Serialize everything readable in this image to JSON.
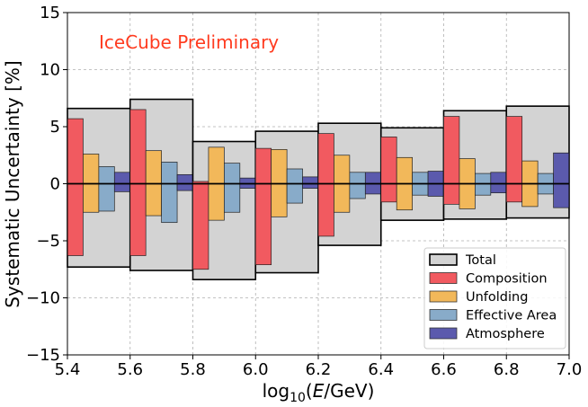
{
  "chart_data": {
    "type": "bar",
    "annotation": "IceCube Preliminary",
    "xlabel": {
      "prefix": "log",
      "sub": "10",
      "open": "(",
      "italic": "E",
      "rest": "/GeV)"
    },
    "ylabel": "Systematic Uncertainty [%]",
    "xlim": [
      5.4,
      7.0
    ],
    "ylim": [
      -15,
      15
    ],
    "x_ticks": [
      "5.4",
      "5.6",
      "5.8",
      "6.0",
      "6.2",
      "6.4",
      "6.6",
      "6.8",
      "7.0"
    ],
    "y_ticks": [
      "−15",
      "−10",
      "−5",
      "0",
      "5",
      "10",
      "15"
    ],
    "y_tick_values": [
      -15,
      -10,
      -5,
      0,
      5,
      10,
      15
    ],
    "x_tick_values": [
      5.4,
      5.6,
      5.8,
      6.0,
      6.2,
      6.4,
      6.6,
      6.8,
      7.0
    ],
    "grid": true,
    "legend_position": "lower-right",
    "bin_edges": [
      5.4,
      5.6,
      5.8,
      6.0,
      6.2,
      6.4,
      6.6,
      6.8,
      7.0
    ],
    "series": [
      {
        "name": "Total",
        "color": "#d3d3d3",
        "up": [
          6.6,
          7.4,
          3.7,
          4.6,
          5.3,
          4.9,
          6.4,
          6.8
        ],
        "down": [
          -7.3,
          -7.6,
          -8.4,
          -7.8,
          -5.4,
          -3.2,
          -3.1,
          -3.0
        ]
      },
      {
        "name": "Composition",
        "color": "#f15a60",
        "up": [
          5.7,
          6.5,
          0.2,
          3.1,
          4.4,
          4.1,
          5.9,
          5.9
        ],
        "down": [
          -6.3,
          -6.3,
          -7.5,
          -7.1,
          -4.6,
          -1.6,
          -1.8,
          -1.6
        ]
      },
      {
        "name": "Unfolding",
        "color": "#f2b85a",
        "up": [
          2.6,
          2.9,
          3.2,
          3.0,
          2.5,
          2.3,
          2.2,
          2.0
        ],
        "down": [
          -2.5,
          -2.8,
          -3.2,
          -2.9,
          -2.5,
          -2.3,
          -2.2,
          -2.0
        ]
      },
      {
        "name": "Effective Area",
        "color": "#88abc9",
        "up": [
          1.5,
          1.9,
          1.8,
          1.3,
          1.0,
          1.0,
          0.9,
          0.9
        ],
        "down": [
          -2.4,
          -3.4,
          -2.5,
          -1.7,
          -1.3,
          -1.0,
          -1.0,
          -0.9
        ]
      },
      {
        "name": "Atmosphere",
        "color": "#5b5aad",
        "up": [
          1.0,
          0.8,
          0.5,
          0.6,
          1.0,
          1.1,
          1.0,
          2.7
        ],
        "down": [
          -0.7,
          -0.6,
          -0.4,
          -0.4,
          -0.9,
          -1.1,
          -0.8,
          -2.1
        ]
      }
    ],
    "legend": [
      "Total",
      "Composition",
      "Unfolding",
      "Effective Area",
      "Atmosphere"
    ]
  }
}
